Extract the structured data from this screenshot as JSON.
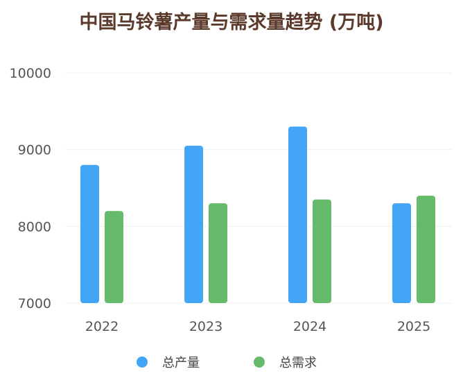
{
  "chart_data": {
    "type": "bar",
    "title": "中国马铃薯产量与需求量趋势 (万吨)",
    "categories": [
      "2022",
      "2023",
      "2024",
      "2025"
    ],
    "series": [
      {
        "name": "总产量",
        "values": [
          8800,
          9050,
          9300,
          8300
        ],
        "color": "#42a5f5"
      },
      {
        "name": "总需求",
        "values": [
          8200,
          8300,
          8350,
          8400
        ],
        "color": "#66bb6a"
      }
    ],
    "ylim": [
      7000,
      10000
    ],
    "yticks": [
      "7000",
      "8000",
      "9000",
      "10000"
    ],
    "grid": true,
    "legend": "bottom"
  }
}
